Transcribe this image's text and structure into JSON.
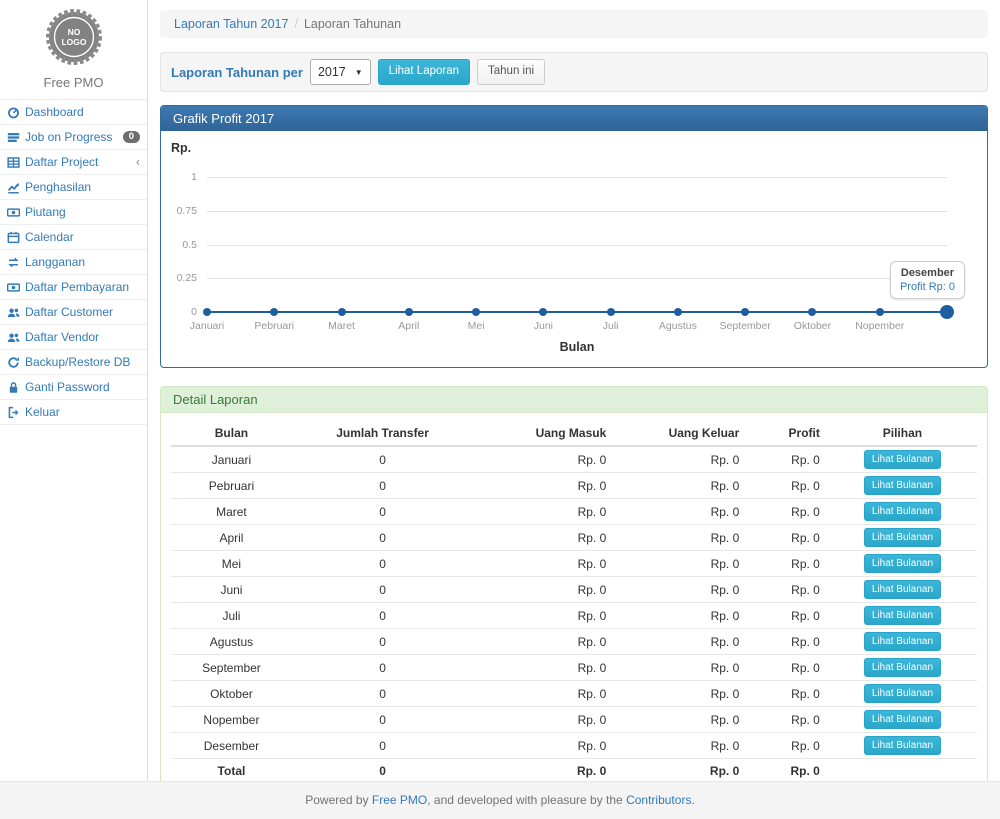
{
  "brand": {
    "logo_line1": "NO",
    "logo_line2": "LOGO",
    "name": "Free PMO"
  },
  "sidebar": {
    "items": [
      {
        "icon": "dashboard-icon",
        "label": "Dashboard"
      },
      {
        "icon": "tasks-icon",
        "label": "Job on Progress",
        "badge": "0"
      },
      {
        "icon": "table-icon",
        "label": "Daftar Project",
        "chevron": "‹"
      },
      {
        "icon": "chart-line-icon",
        "label": "Penghasilan"
      },
      {
        "icon": "money-icon",
        "label": "Piutang"
      },
      {
        "icon": "calendar-icon",
        "label": "Calendar"
      },
      {
        "icon": "exchange-icon",
        "label": "Langganan"
      },
      {
        "icon": "money-icon",
        "label": "Daftar Pembayaran"
      },
      {
        "icon": "users-icon",
        "label": "Daftar Customer"
      },
      {
        "icon": "users-icon",
        "label": "Daftar Vendor"
      },
      {
        "icon": "refresh-icon",
        "label": "Backup/Restore DB"
      },
      {
        "icon": "lock-icon",
        "label": "Ganti Password"
      },
      {
        "icon": "signout-icon",
        "label": "Keluar"
      }
    ]
  },
  "breadcrumb": {
    "link": "Laporan Tahun 2017",
    "separator": "/",
    "current": "Laporan Tahunan"
  },
  "filter": {
    "label": "Laporan Tahunan per",
    "year_selected": "2017",
    "view_button": "Lihat Laporan",
    "this_year_button": "Tahun ini"
  },
  "chart_panel": {
    "title": "Grafik Profit 2017"
  },
  "chart_data": {
    "type": "line",
    "title": "Grafik Profit 2017",
    "x": [
      "Januari",
      "Pebruari",
      "Maret",
      "April",
      "Mei",
      "Juni",
      "Juli",
      "Agustus",
      "September",
      "Oktober",
      "Nopember",
      "Desember"
    ],
    "series": [
      {
        "name": "Profit",
        "values": [
          0,
          0,
          0,
          0,
          0,
          0,
          0,
          0,
          0,
          0,
          0,
          0
        ]
      }
    ],
    "ylabel": "Rp.",
    "xlabel": "Bulan",
    "yticks": [
      0,
      0.25,
      0.5,
      0.75,
      1
    ],
    "ytick_labels": [
      "0",
      "0.25",
      "0.5",
      "0.75",
      "1"
    ],
    "ylim": [
      0,
      1
    ],
    "grid": true,
    "legend": "none",
    "last_point_highlighted": true,
    "last_x_label_hidden": true,
    "tooltip": {
      "title": "Desember",
      "value": "Profit Rp: 0"
    },
    "line_color": "#1e5e9e"
  },
  "detail_panel": {
    "title": "Detail Laporan",
    "table": {
      "columns": [
        "Bulan",
        "Jumlah Transfer",
        "Uang Masuk",
        "Uang Keluar",
        "Profit",
        "Pilihan"
      ],
      "action_label": "Lihat Bulanan",
      "rows": [
        {
          "bulan": "Januari",
          "jumlah_transfer": "0",
          "uang_masuk": "Rp. 0",
          "uang_keluar": "Rp. 0",
          "profit": "Rp. 0"
        },
        {
          "bulan": "Pebruari",
          "jumlah_transfer": "0",
          "uang_masuk": "Rp. 0",
          "uang_keluar": "Rp. 0",
          "profit": "Rp. 0"
        },
        {
          "bulan": "Maret",
          "jumlah_transfer": "0",
          "uang_masuk": "Rp. 0",
          "uang_keluar": "Rp. 0",
          "profit": "Rp. 0"
        },
        {
          "bulan": "April",
          "jumlah_transfer": "0",
          "uang_masuk": "Rp. 0",
          "uang_keluar": "Rp. 0",
          "profit": "Rp. 0"
        },
        {
          "bulan": "Mei",
          "jumlah_transfer": "0",
          "uang_masuk": "Rp. 0",
          "uang_keluar": "Rp. 0",
          "profit": "Rp. 0"
        },
        {
          "bulan": "Juni",
          "jumlah_transfer": "0",
          "uang_masuk": "Rp. 0",
          "uang_keluar": "Rp. 0",
          "profit": "Rp. 0"
        },
        {
          "bulan": "Juli",
          "jumlah_transfer": "0",
          "uang_masuk": "Rp. 0",
          "uang_keluar": "Rp. 0",
          "profit": "Rp. 0"
        },
        {
          "bulan": "Agustus",
          "jumlah_transfer": "0",
          "uang_masuk": "Rp. 0",
          "uang_keluar": "Rp. 0",
          "profit": "Rp. 0"
        },
        {
          "bulan": "September",
          "jumlah_transfer": "0",
          "uang_masuk": "Rp. 0",
          "uang_keluar": "Rp. 0",
          "profit": "Rp. 0"
        },
        {
          "bulan": "Oktober",
          "jumlah_transfer": "0",
          "uang_masuk": "Rp. 0",
          "uang_keluar": "Rp. 0",
          "profit": "Rp. 0"
        },
        {
          "bulan": "Nopember",
          "jumlah_transfer": "0",
          "uang_masuk": "Rp. 0",
          "uang_keluar": "Rp. 0",
          "profit": "Rp. 0"
        },
        {
          "bulan": "Desember",
          "jumlah_transfer": "0",
          "uang_masuk": "Rp. 0",
          "uang_keluar": "Rp. 0",
          "profit": "Rp. 0"
        }
      ],
      "total": {
        "bulan": "Total",
        "jumlah_transfer": "0",
        "uang_masuk": "Rp. 0",
        "uang_keluar": "Rp. 0",
        "profit": "Rp. 0"
      }
    }
  },
  "footer": {
    "prefix": "Powered by ",
    "link1": "Free PMO",
    "middle": ", and developed with pleasure by the ",
    "link2": "Contributors."
  },
  "colors": {
    "accent_blue": "#337ab7",
    "panel_primary_header": "#35699e",
    "info_button": "#31b0d5",
    "success_header_bg": "#dff0d8",
    "success_header_text": "#3c763d",
    "chart_line": "#1e5e9e",
    "grid": "#e3e3e3"
  }
}
